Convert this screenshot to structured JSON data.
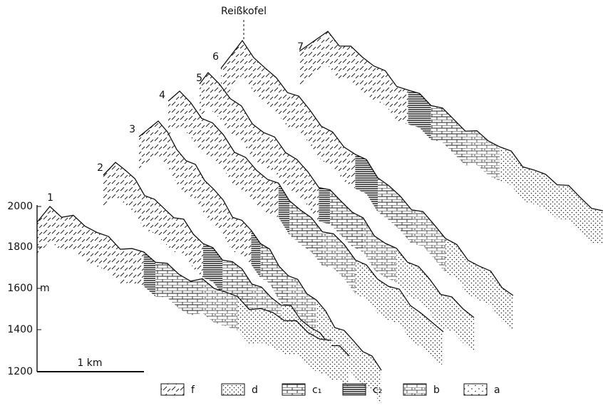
{
  "summit_label": "Reißkofel",
  "profiles": [
    "1",
    "2",
    "3",
    "4",
    "5",
    "6",
    "7"
  ],
  "axis": {
    "ticks": [
      "2000",
      "1800",
      "1600",
      "1400",
      "1200"
    ],
    "unit": "m",
    "scale_bar": "1 km"
  },
  "legend": [
    {
      "label": "f"
    },
    {
      "label": "d"
    },
    {
      "label": "c₁"
    },
    {
      "label": "c₂"
    },
    {
      "label": "b"
    },
    {
      "label": "a"
    }
  ]
}
